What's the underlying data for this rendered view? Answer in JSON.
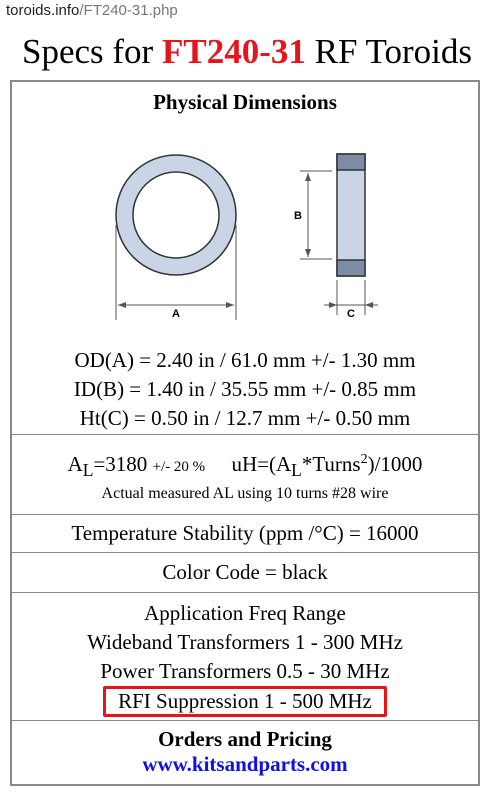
{
  "url": {
    "host": "toroids.info",
    "path": "/FT240-31.php"
  },
  "title": {
    "prefix": "Specs for",
    "part": "FT240-31",
    "suffix": "RF Toroids"
  },
  "dimensions": {
    "heading": "Physical Dimensions",
    "label_a": "A",
    "label_b": "B",
    "label_c": "C",
    "lines": [
      "OD(A) = 2.40 in / 61.0 mm +/- 1.30 mm",
      "ID(B) = 1.40 in / 35.55 mm +/- 0.85 mm",
      "Ht(C) = 0.50 in / 12.7 mm +/- 0.50 mm"
    ]
  },
  "al": {
    "a": "A",
    "a_sub": "L",
    "value": "=3180",
    "tolerance": "+/- 20 %",
    "formula_start": "uH=(A",
    "formula_sub": "L",
    "formula_mid": "*Turns",
    "formula_sup": "2",
    "formula_end": ")/1000",
    "note": "Actual measured AL using 10 turns #28 wire"
  },
  "temperature": "Temperature Stability (ppm /°C) = 16000",
  "color_code": "Color Code = black",
  "application": {
    "heading": "Application Freq Range",
    "lines": [
      "Wideband Transformers 1 - 300 MHz",
      "Power Transformers 0.5 - 30 MHz"
    ],
    "highlighted": "RFI Suppression 1 - 500 MHz"
  },
  "orders": {
    "heading": "Orders and Pricing",
    "link": "www.kitsandparts.com"
  }
}
